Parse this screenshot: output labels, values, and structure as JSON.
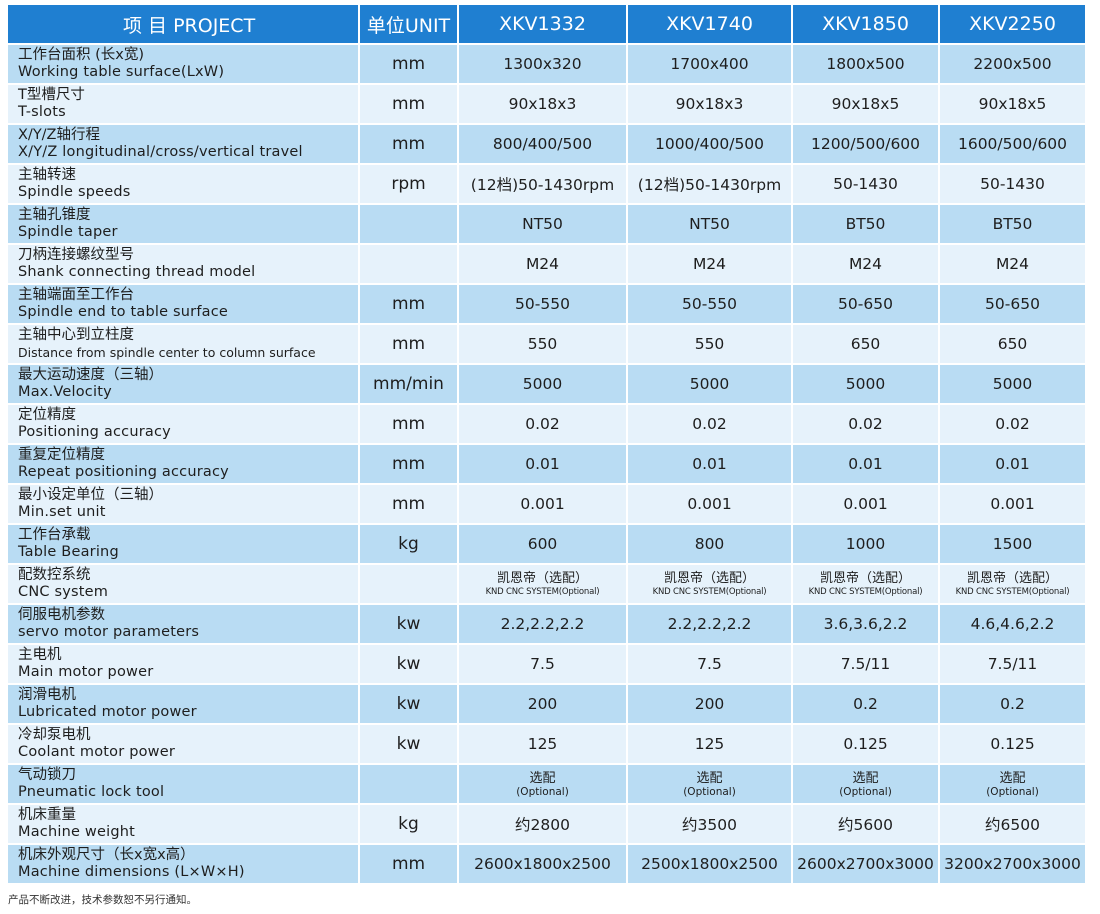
{
  "header": {
    "project": "项 目 PROJECT",
    "unit": "单位UNIT",
    "models": [
      "XKV1332",
      "XKV1740",
      "XKV1850",
      "XKV2250"
    ]
  },
  "rows": [
    {
      "zh": "工作台面积 (长x宽)",
      "en": "Working table surface(LxW)",
      "unit": "mm",
      "values": [
        "1300x320",
        "1700x400",
        "1800x500",
        "2200x500"
      ]
    },
    {
      "zh": "T型槽尺寸",
      "en": "T-slots",
      "unit": "mm",
      "values": [
        "90x18x3",
        "90x18x3",
        "90x18x5",
        "90x18x5"
      ]
    },
    {
      "zh": "X/Y/Z轴行程",
      "en": "X/Y/Z longitudinal/cross/vertical travel",
      "unit": "mm",
      "values": [
        "800/400/500",
        "1000/400/500",
        "1200/500/600",
        "1600/500/600"
      ]
    },
    {
      "zh": "主轴转速",
      "en": "Spindle speeds",
      "unit": "rpm",
      "values": [
        "(12档)50-1430rpm",
        "(12档)50-1430rpm",
        "50-1430",
        "50-1430"
      ]
    },
    {
      "zh": "主轴孔锥度",
      "en": "Spindle taper",
      "unit": "",
      "values": [
        "NT50",
        "NT50",
        "BT50",
        "BT50"
      ]
    },
    {
      "zh": "刀柄连接螺纹型号",
      "en": "Shank connecting thread model",
      "unit": "",
      "values": [
        "M24",
        "M24",
        "M24",
        "M24"
      ]
    },
    {
      "zh": "主轴端面至工作台",
      "en": "Spindle end to table surface",
      "unit": "mm",
      "values": [
        "50-550",
        "50-550",
        "50-650",
        "50-650"
      ]
    },
    {
      "zh": "主轴中心到立柱度",
      "en": "Distance from spindle center to column surface",
      "unit": "mm",
      "values": [
        "550",
        "550",
        "650",
        "650"
      ]
    },
    {
      "zh": "最大运动速度（三轴）",
      "en": "Max.Velocity",
      "unit": "mm/min",
      "values": [
        "5000",
        "5000",
        "5000",
        "5000"
      ]
    },
    {
      "zh": "定位精度",
      "en": "Positioning accuracy",
      "unit": "mm",
      "values": [
        "0.02",
        "0.02",
        "0.02",
        "0.02"
      ]
    },
    {
      "zh": "重复定位精度",
      "en": "Repeat positioning accuracy",
      "unit": "mm",
      "values": [
        "0.01",
        "0.01",
        "0.01",
        "0.01"
      ]
    },
    {
      "zh": "最小设定单位（三轴）",
      "en": "Min.set unit",
      "unit": "mm",
      "values": [
        "0.001",
        "0.001",
        "0.001",
        "0.001"
      ]
    },
    {
      "zh": "工作台承载",
      "en": "Table Bearing",
      "unit": "kg",
      "values": [
        "600",
        "800",
        "1000",
        "1500"
      ]
    },
    {
      "zh": "配数控系统",
      "en": "CNC system",
      "unit": "",
      "values": [
        {
          "l1": "凯恩帝（选配）",
          "l2": "KND CNC SYSTEM(Optional)"
        },
        {
          "l1": "凯恩帝（选配）",
          "l2": "KND CNC SYSTEM(Optional)"
        },
        {
          "l1": "凯恩帝（选配）",
          "l2": "KND CNC SYSTEM(Optional)"
        },
        {
          "l1": "凯恩帝（选配）",
          "l2": "KND CNC SYSTEM(Optional)"
        }
      ]
    },
    {
      "zh": "伺服电机参数",
      "en": "servo motor parameters",
      "unit": "kw",
      "values": [
        "2.2,2.2,2.2",
        "2.2,2.2,2.2",
        "3.6,3.6,2.2",
        "4.6,4.6,2.2"
      ]
    },
    {
      "zh": "主电机",
      "en": "Main motor power",
      "unit": "kw",
      "values": [
        "7.5",
        "7.5",
        "7.5/11",
        "7.5/11"
      ]
    },
    {
      "zh": "润滑电机",
      "en": "Lubricated motor power",
      "unit": "kw",
      "values": [
        "200",
        "200",
        "0.2",
        "0.2"
      ]
    },
    {
      "zh": "冷却泵电机",
      "en": "Coolant motor power",
      "unit": "kw",
      "values": [
        "125",
        "125",
        "0.125",
        "0.125"
      ]
    },
    {
      "zh": "气动锁刀",
      "en": "Pneumatic lock tool",
      "unit": "",
      "values": [
        {
          "l1": "选配",
          "l2": "(Optional)"
        },
        {
          "l1": "选配",
          "l2": "(Optional)"
        },
        {
          "l1": "选配",
          "l2": "(Optional)"
        },
        {
          "l1": "选配",
          "l2": "(Optional)"
        }
      ]
    },
    {
      "zh": "机床重量",
      "en": "Machine weight",
      "unit": "kg",
      "values": [
        "约2800",
        "约3500",
        "约5600",
        "约6500"
      ]
    },
    {
      "zh": "机床外观尺寸（长x宽x高）",
      "en": "Machine dimensions (L×W×H)",
      "unit": "mm",
      "values": [
        "2600x1800x2500",
        "2500x1800x2500",
        "2600x2700x3000",
        "3200x2700x3000"
      ]
    }
  ],
  "footnote": "产品不断改进，技术参数恕不另行通知。"
}
